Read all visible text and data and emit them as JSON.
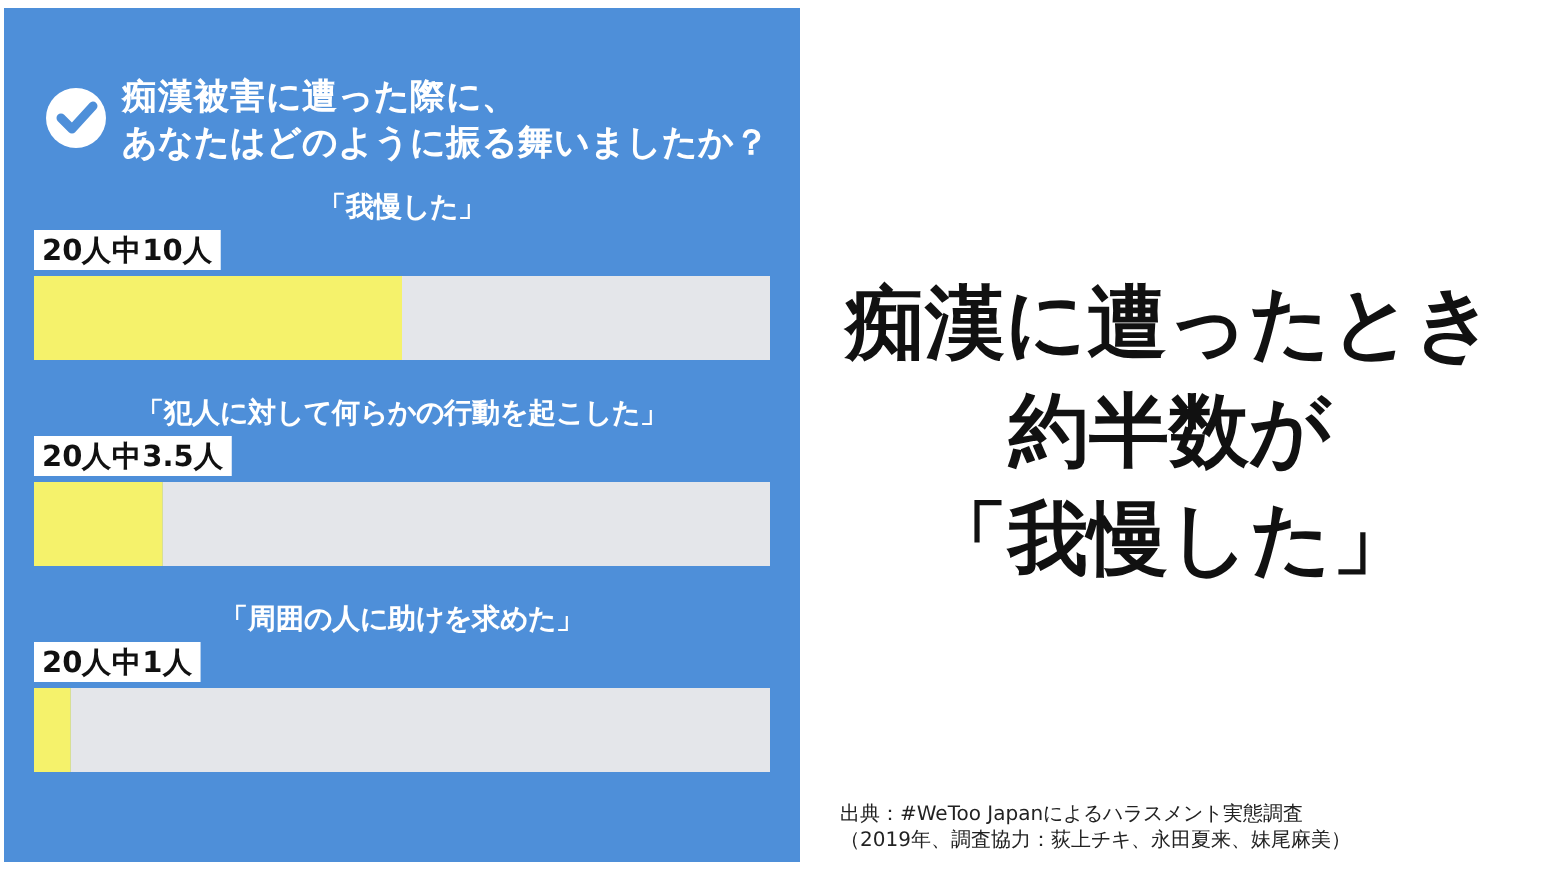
{
  "chart_data": {
    "type": "bar",
    "orientation": "horizontal",
    "stacked": true,
    "title": "痴漢に遭ったとき約半数が「我慢した」",
    "subtitle": "痴漢被害に遭った際に、あなたはどのように振る舞いましたか？",
    "categories": [
      "「我慢した」",
      "「犯人に対して何らかの行動を起こした」",
      "「周囲の人に助けを求めた」"
    ],
    "series": [
      {
        "color": "#f5f26b",
        "values": [
          10,
          3.5,
          1
        ],
        "value_labels": [
          "20人中10人",
          "20人中3.5人",
          "20人中1人"
        ]
      },
      {
        "color": "#e4e6ea",
        "values": [
          10,
          16.5,
          19
        ]
      }
    ],
    "tick_labels": "y",
    "annotations": [
      "出典：#WeToo Japanによるハラスメント実態調査",
      "（2019年、調査協力：荻上チキ、永田夏来、妹尾麻美）"
    ]
  }
}
